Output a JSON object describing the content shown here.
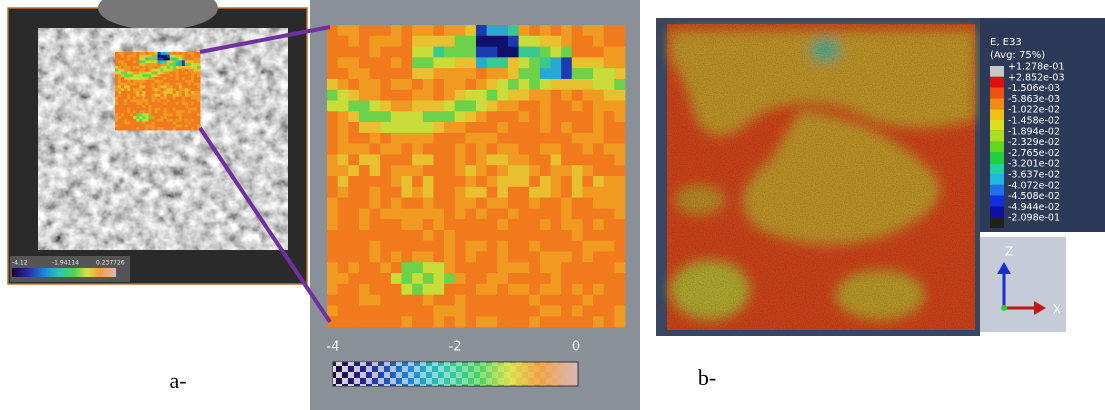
{
  "panel_a": {
    "small_colorbar": {
      "min_label": "-4.12",
      "mid_label": "-1.94114",
      "max_label": "0.237726"
    },
    "zoom_colorbar": {
      "tick_labels": [
        "-4",
        "-2",
        "0"
      ]
    },
    "caption": "a-"
  },
  "panel_b": {
    "legend": {
      "title": "E, E33",
      "subtitle": "(Avg: 75%)",
      "entries": [
        "+1.278e-01",
        "+2.852e-03",
        "-1.506e-03",
        "-5.863e-03",
        "-1.022e-02",
        "-1.458e-02",
        "-1.894e-02",
        "-2.329e-02",
        "-2.765e-02",
        "-3.201e-02",
        "-3.637e-02",
        "-4.072e-02",
        "-4.508e-02",
        "-4.944e-02",
        "-2.098e-01"
      ]
    },
    "axes": {
      "z_label": "Z",
      "x_label": "X"
    },
    "caption": "b-"
  }
}
